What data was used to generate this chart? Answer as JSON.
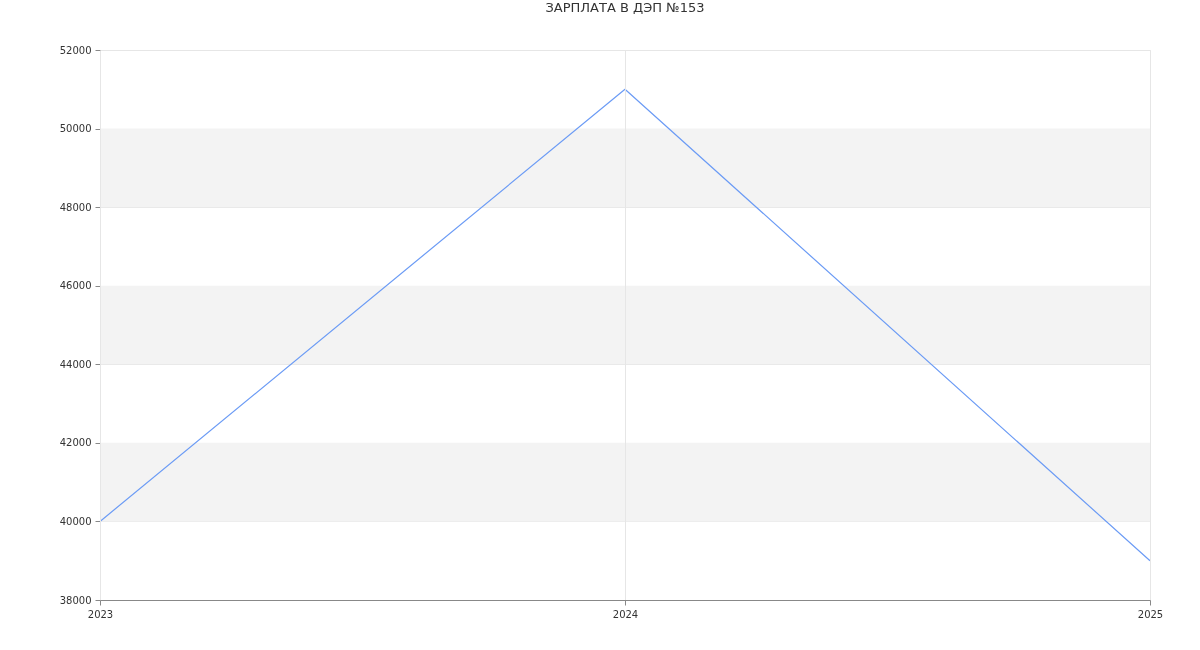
{
  "chart_data": {
    "type": "line",
    "title": "ЗАРПЛАТА В ДЭП №153",
    "categories": [
      "2023",
      "2024",
      "2025"
    ],
    "series": [
      {
        "color": "#6b9bf5",
        "values": [
          40000,
          51000,
          39000
        ]
      }
    ],
    "ylim": [
      38000,
      52000
    ],
    "yticks": [
      38000,
      40000,
      42000,
      44000,
      46000,
      48000,
      50000,
      52000
    ],
    "grid": true,
    "marker": "none",
    "line_style": "solid",
    "bands": [
      {
        "axis": "y",
        "from": 40000,
        "to": 42000,
        "color": "#f3f3f3"
      },
      {
        "axis": "y",
        "from": 44000,
        "to": 46000,
        "color": "#f3f3f3"
      },
      {
        "axis": "y",
        "from": 48000,
        "to": 50000,
        "color": "#f3f3f3"
      }
    ]
  }
}
